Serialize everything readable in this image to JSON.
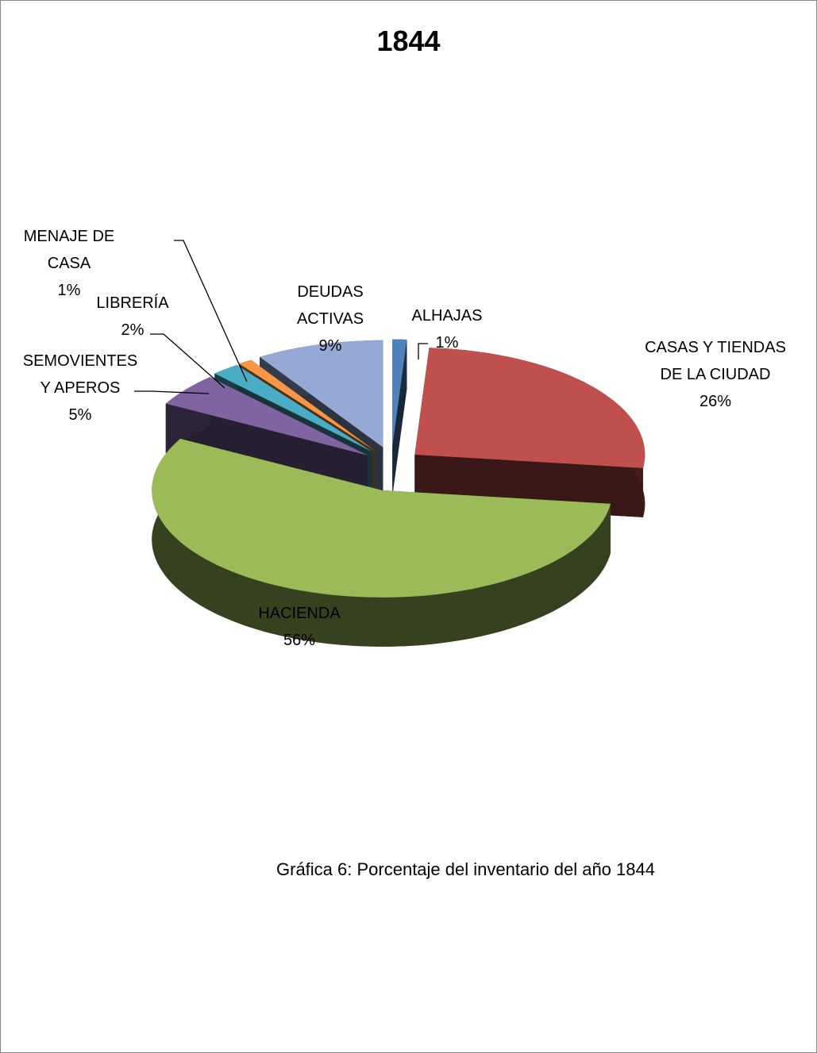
{
  "chart_data": {
    "type": "pie3d",
    "title": "1844",
    "categories": [
      "ALHAJAS",
      "CASAS Y TIENDAS DE LA CIUDAD",
      "HACIENDA",
      "SEMOVIENTES Y APEROS",
      "LIBRERÍA",
      "MENAJE DE CASA",
      "DEUDAS ACTIVAS"
    ],
    "values": [
      1,
      26,
      56,
      5,
      2,
      1,
      9
    ],
    "value_labels": [
      "1%",
      "26%",
      "56%",
      "5%",
      "2%",
      "1%",
      "9%"
    ],
    "colors": [
      "#4f81bd",
      "#c0504d",
      "#9bbb59",
      "#8064a2",
      "#4bacc6",
      "#f79646",
      "#95a9d4"
    ]
  },
  "caption": "Gráfica 6: Porcentaje del inventario del año 1844"
}
